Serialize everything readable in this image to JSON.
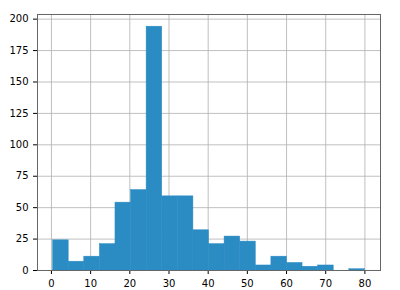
{
  "chart_data": {
    "type": "histogram",
    "bins": [
      0.42,
      4.4,
      8.38,
      12.36,
      16.34,
      20.32,
      24.29,
      28.27,
      32.25,
      36.23,
      40.21,
      44.19,
      48.17,
      52.15,
      56.13,
      60.11,
      64.08,
      68.06,
      72.04,
      76.02,
      80.0
    ],
    "values": [
      24,
      7,
      11,
      21,
      54,
      64,
      194,
      59,
      59,
      32,
      21,
      27,
      23,
      4,
      11,
      6,
      3,
      4,
      0,
      1
    ],
    "color": "#2b8cc4",
    "xlim": [
      -3.56,
      83.98
    ],
    "xticks": [
      0,
      10,
      20,
      30,
      40,
      50,
      60,
      70,
      80
    ],
    "ylim": [
      0,
      203.7
    ],
    "yticks": [
      0,
      25,
      50,
      75,
      100,
      125,
      150,
      175,
      200
    ],
    "grid": true
  }
}
